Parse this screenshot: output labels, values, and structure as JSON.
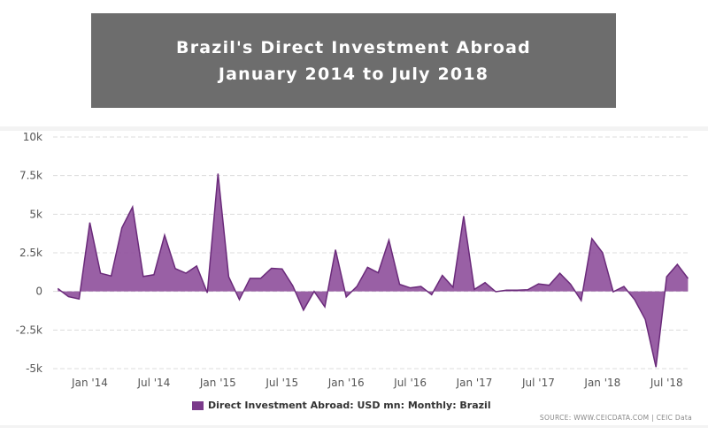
{
  "title_lines": [
    "Brazil's Direct Investment Abroad",
    "January 2014 to July 2018"
  ],
  "colors": {
    "fill": "#8e4f9b",
    "line": "#6a2a7a",
    "title_bg": "#6d6d6d"
  },
  "source": "SOURCE: WWW.CEICDATA.COM | CEIC Data",
  "chart_data": {
    "type": "area",
    "title": "Brazil's Direct Investment Abroad January 2014 to July 2018",
    "xlabel": "",
    "ylabel": "",
    "ylim": [
      -5000,
      10000
    ],
    "yticks": [
      -5000,
      -2500,
      0,
      2500,
      5000,
      7500,
      10000
    ],
    "ytick_labels": [
      "-5k",
      "-2.5k",
      "0",
      "2.5k",
      "5k",
      "7.5k",
      "10k"
    ],
    "xtick_labels": [
      "Jan '14",
      "Jul '14",
      "Jan '15",
      "Jul '15",
      "Jan '16",
      "Jul '16",
      "Jan '17",
      "Jul '17",
      "Jan '18",
      "Jul '18"
    ],
    "xtick_dates": [
      "2014-01",
      "2014-07",
      "2015-01",
      "2015-07",
      "2016-01",
      "2016-07",
      "2017-01",
      "2017-07",
      "2018-01",
      "2018-07"
    ],
    "grid": true,
    "legend_position": "bottom",
    "series": [
      {
        "name": "Direct Investment Abroad: USD mn: Monthly: Brazil",
        "x": [
          "2013-10",
          "2013-11",
          "2013-12",
          "2014-01",
          "2014-02",
          "2014-03",
          "2014-04",
          "2014-05",
          "2014-06",
          "2014-07",
          "2014-08",
          "2014-09",
          "2014-10",
          "2014-11",
          "2014-12",
          "2015-01",
          "2015-02",
          "2015-03",
          "2015-04",
          "2015-05",
          "2015-06",
          "2015-07",
          "2015-08",
          "2015-09",
          "2015-10",
          "2015-11",
          "2015-12",
          "2016-01",
          "2016-02",
          "2016-03",
          "2016-04",
          "2016-05",
          "2016-06",
          "2016-07",
          "2016-08",
          "2016-09",
          "2016-10",
          "2016-11",
          "2016-12",
          "2017-01",
          "2017-02",
          "2017-03",
          "2017-04",
          "2017-05",
          "2017-06",
          "2017-07",
          "2017-08",
          "2017-09",
          "2017-10",
          "2017-11",
          "2017-12",
          "2018-01",
          "2018-02",
          "2018-03",
          "2018-04",
          "2018-05",
          "2018-06",
          "2018-07",
          "2018-08",
          "2018-09"
        ],
        "values": [
          190,
          -340,
          -490,
          4460,
          1180,
          1000,
          4120,
          5470,
          970,
          1080,
          3640,
          1480,
          1180,
          1650,
          -90,
          7630,
          950,
          -530,
          850,
          850,
          1500,
          1460,
          360,
          -1210,
          0,
          -1000,
          2700,
          -360,
          320,
          1560,
          1210,
          3320,
          460,
          230,
          320,
          -210,
          1040,
          270,
          4880,
          130,
          570,
          -20,
          80,
          80,
          110,
          490,
          400,
          1180,
          470,
          -590,
          3420,
          2510,
          -20,
          320,
          -530,
          -1820,
          -4900,
          950,
          1750,
          840
        ]
      }
    ]
  }
}
